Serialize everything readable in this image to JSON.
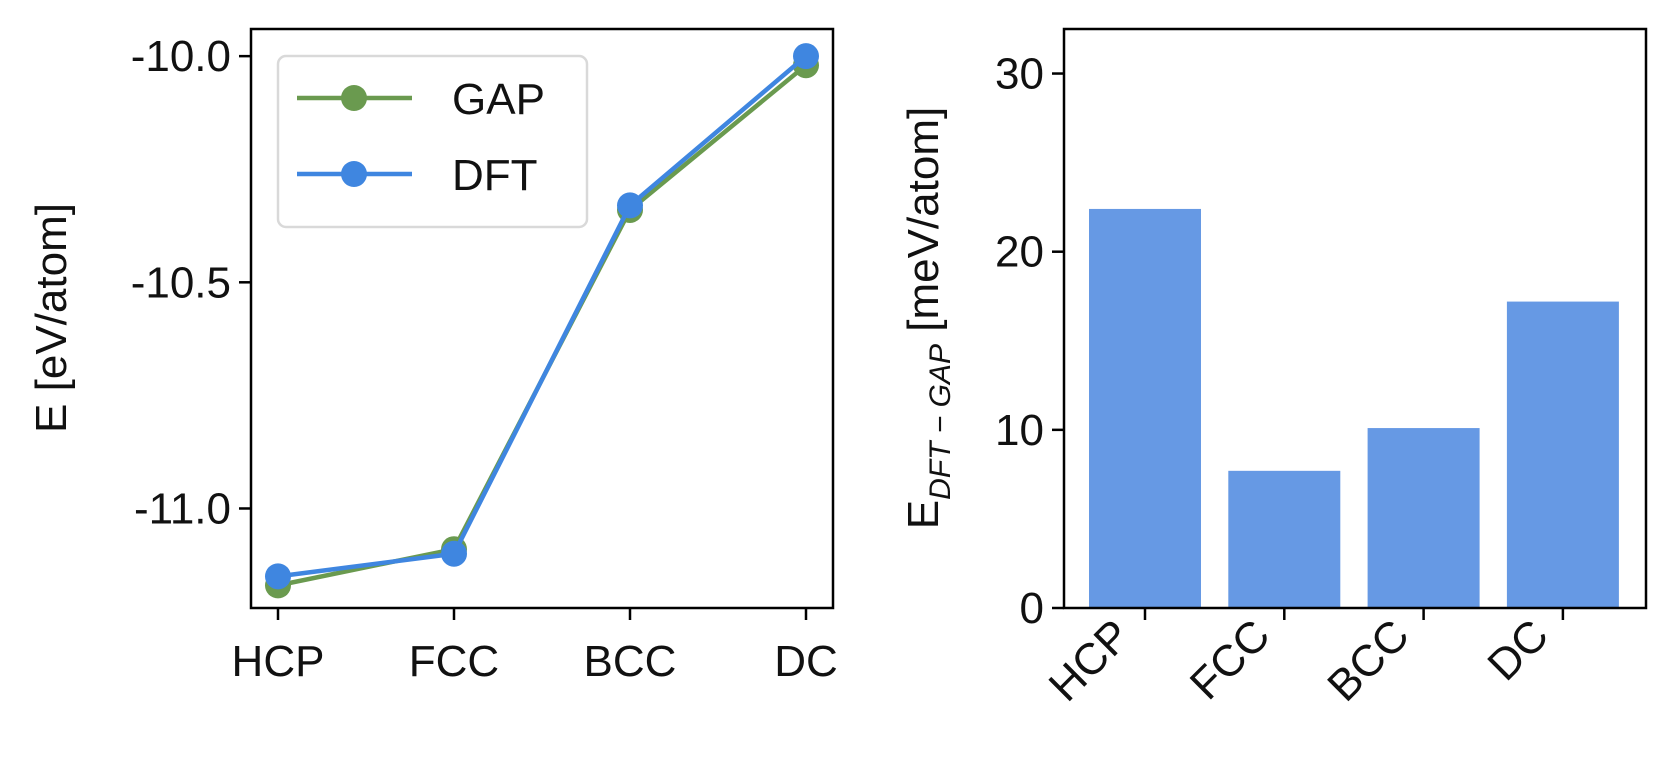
{
  "chart_data": [
    {
      "type": "line",
      "title": "",
      "xlabel": "",
      "ylabel": "E [eV/atom]",
      "categories": [
        "HCP",
        "FCC",
        "BCC",
        "DC"
      ],
      "ylim": [
        -11.22,
        -9.94
      ],
      "yticks": [
        -10.0,
        -10.5,
        -11.0
      ],
      "ytick_labels": [
        "-10.0",
        "-10.5",
        "-11.0"
      ],
      "legend": {
        "position": "top-left",
        "entries": [
          "GAP",
          "DFT"
        ]
      },
      "series": [
        {
          "name": "GAP",
          "color": "#6a9a4f",
          "values": [
            -11.17,
            -11.09,
            -10.34,
            -10.02
          ]
        },
        {
          "name": "DFT",
          "color": "#3f86e0",
          "values": [
            -11.15,
            -11.1,
            -10.33,
            -10.0
          ]
        }
      ]
    },
    {
      "type": "bar",
      "title": "",
      "xlabel": "",
      "ylabel_main": "E",
      "ylabel_sub": "DFT − GAP",
      "ylabel_unit": " [meV/atom]",
      "categories": [
        "HCP",
        "FCC",
        "BCC",
        "DC"
      ],
      "values": [
        22.4,
        7.7,
        10.1,
        17.2
      ],
      "color": "#6699e4",
      "ylim": [
        0,
        32.5
      ],
      "yticks": [
        0,
        10,
        20,
        30
      ],
      "ytick_labels": [
        "0",
        "10",
        "20",
        "30"
      ]
    }
  ]
}
